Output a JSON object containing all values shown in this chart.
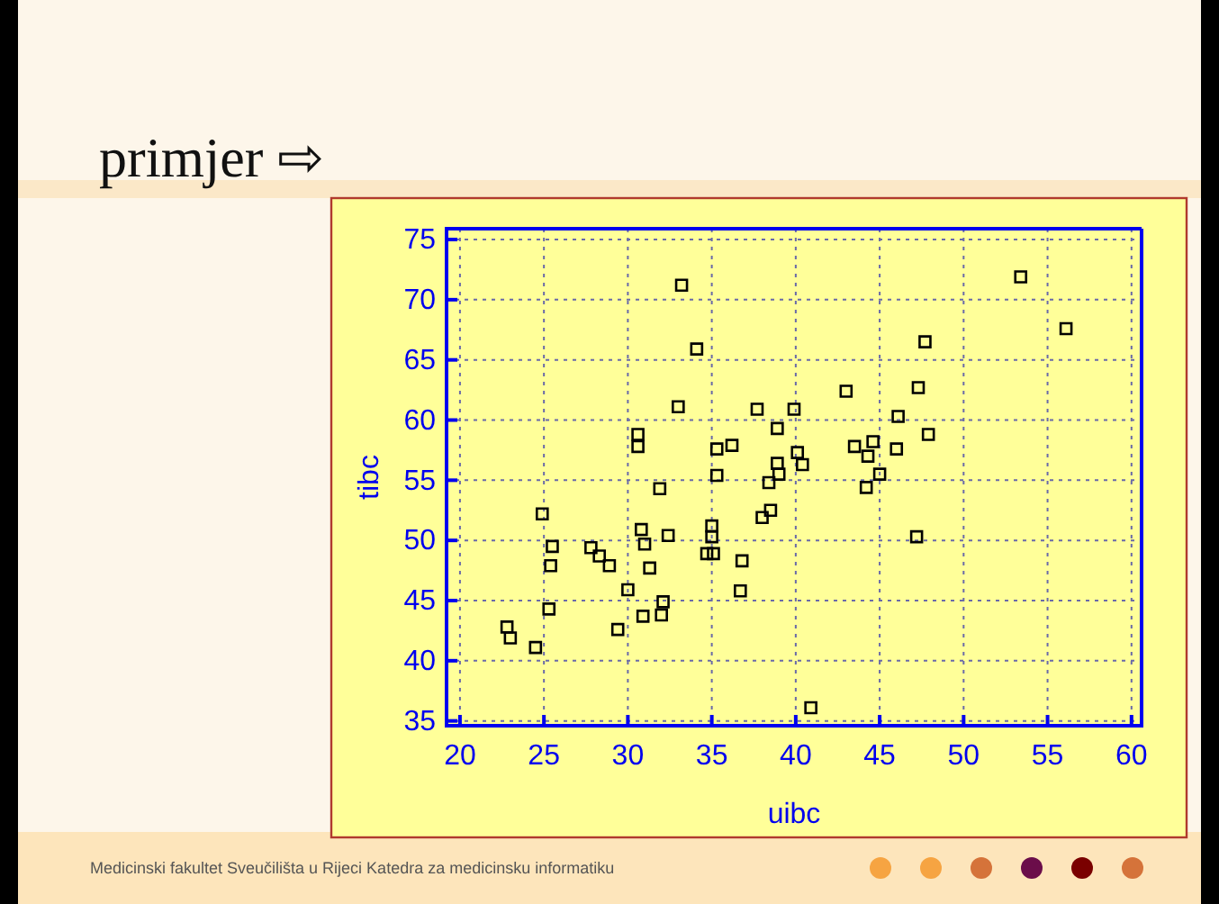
{
  "chart_data": {
    "type": "scatter",
    "title": "primjer ⇨",
    "xlabel": "uibc",
    "ylabel": "tibc",
    "annotations": [
      "Medicinski fakultet Sveučilišta u Rijeci Katedra za medicinsku informatiku"
    ],
    "x": [
      33.2,
      34.1,
      33.0,
      53.4,
      56.1,
      47.7,
      43.0,
      47.3,
      46.1,
      47.9,
      37.7,
      39.9,
      30.6,
      30.6,
      35.3,
      36.2,
      38.9,
      38.9,
      39.0,
      35.3,
      38.4,
      31.9,
      43.5,
      44.6,
      44.3,
      46.0,
      40.1,
      40.4,
      45.0,
      44.2,
      38.0,
      38.5,
      47.2,
      40.9,
      24.9,
      30.8,
      35.0,
      35.0,
      25.5,
      31.0,
      32.4,
      27.8,
      28.3,
      34.7,
      35.1,
      28.9,
      25.4,
      31.3,
      36.8,
      30.0,
      36.7,
      25.3,
      32.1,
      32.0,
      30.9,
      22.8,
      23.0,
      29.4,
      24.5
    ],
    "values": [
      71.2,
      65.9,
      61.1,
      71.9,
      67.6,
      66.5,
      62.4,
      62.7,
      60.3,
      58.8,
      60.9,
      60.9,
      58.8,
      57.8,
      57.6,
      57.9,
      59.3,
      56.4,
      55.5,
      55.4,
      54.8,
      54.3,
      57.8,
      58.2,
      57.0,
      57.6,
      57.3,
      56.3,
      55.5,
      54.4,
      51.9,
      52.5,
      50.3,
      36.1,
      52.2,
      50.9,
      51.2,
      50.3,
      49.5,
      49.7,
      50.4,
      49.4,
      48.7,
      48.9,
      48.9,
      47.9,
      47.9,
      47.7,
      48.3,
      45.9,
      45.8,
      44.3,
      44.9,
      43.8,
      43.7,
      42.8,
      41.9,
      42.6,
      41.1
    ],
    "color": "#000000",
    "marker": "square",
    "xlim": [
      19.2,
      60.6
    ],
    "ylim": [
      34.6,
      75.9
    ],
    "xticks": [
      20,
      25,
      30,
      35,
      40,
      45,
      50,
      55,
      60
    ],
    "yticks": [
      35,
      40,
      45,
      50,
      55,
      60,
      65,
      70,
      75
    ],
    "grid": true
  }
}
